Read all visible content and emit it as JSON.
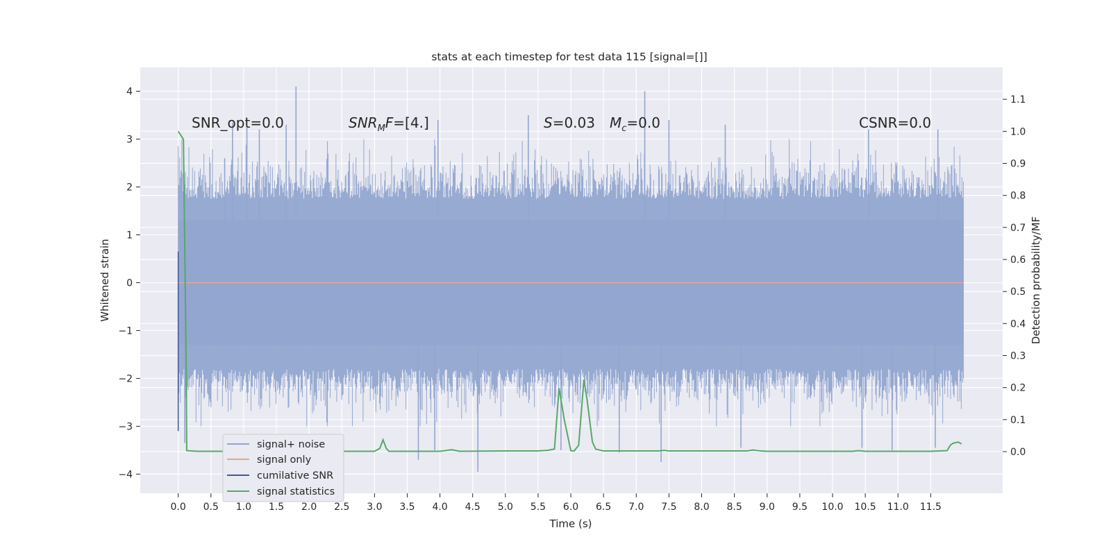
{
  "chart_data": {
    "type": "line",
    "title": "stats at each timestep for test data 115 [signal=[]]",
    "xlabel": "Time (s)",
    "ylabel_left": "Whitened strain",
    "ylabel_right": "Detection probability/MF",
    "xlim": [
      -0.58,
      12.6
    ],
    "ylim_left": [
      -4.4,
      4.5
    ],
    "ylim_right": [
      -0.13,
      1.2
    ],
    "x_ticks": [
      "0.0",
      "0.5",
      "1.0",
      "1.5",
      "2.0",
      "2.5",
      "3.0",
      "3.5",
      "4.0",
      "4.5",
      "5.0",
      "5.5",
      "6.0",
      "6.5",
      "7.0",
      "7.5",
      "8.0",
      "8.5",
      "9.0",
      "9.5",
      "10.0",
      "10.5",
      "11.0",
      "11.5"
    ],
    "y_ticks_left": [
      "−4",
      "−3",
      "−2",
      "−1",
      "0",
      "1",
      "2",
      "3",
      "4"
    ],
    "y_ticks_right": [
      "0.0",
      "0.1",
      "0.2",
      "0.3",
      "0.4",
      "0.5",
      "0.6",
      "0.7",
      "0.8",
      "0.9",
      "1.0",
      "1.1"
    ],
    "grid": true,
    "legend_position": "lower-left",
    "series": [
      {
        "name": "signal+ noise",
        "color": "#92a6cf",
        "x_range": [
          0.0,
          12.0
        ],
        "dense_band": [
          -1.3,
          1.3
        ],
        "spike_extremes": [
          {
            "x": 0.71,
            "y": 2.6
          },
          {
            "x": 0.83,
            "y": 3.35
          },
          {
            "x": 1.05,
            "y": 3.25
          },
          {
            "x": 1.24,
            "y": 3.2
          },
          {
            "x": 1.65,
            "y": 3.3
          },
          {
            "x": 1.8,
            "y": 4.1
          },
          {
            "x": 3.97,
            "y": 3.4
          },
          {
            "x": 5.35,
            "y": 3.5
          },
          {
            "x": 7.13,
            "y": 4.0
          },
          {
            "x": 7.5,
            "y": 3.4
          },
          {
            "x": 8.36,
            "y": 3.3
          },
          {
            "x": 10.55,
            "y": 3.2
          },
          {
            "x": 11.61,
            "y": 3.2
          },
          {
            "x": 0.1,
            "y": -3.35
          },
          {
            "x": 3.67,
            "y": -3.7
          },
          {
            "x": 3.92,
            "y": -3.5
          },
          {
            "x": 4.58,
            "y": -3.95
          },
          {
            "x": 5.85,
            "y": -3.5
          },
          {
            "x": 6.74,
            "y": -3.55
          },
          {
            "x": 7.38,
            "y": -3.75
          },
          {
            "x": 8.6,
            "y": -3.45
          },
          {
            "x": 10.45,
            "y": -3.45
          },
          {
            "x": 10.91,
            "y": -3.5
          },
          {
            "x": 11.57,
            "y": -3.45
          }
        ]
      },
      {
        "name": "signal only",
        "color": "#e8a48c",
        "x": [
          0.0,
          12.0
        ],
        "y": [
          0.0,
          0.0
        ]
      },
      {
        "name": "cumilative SNR",
        "color": "#3c5a9a",
        "x": [
          0.0,
          0.0
        ],
        "y": [
          -3.1,
          0.65
        ]
      },
      {
        "name": "signal statistics",
        "color": "#55a868",
        "axis": "right",
        "x": [
          0.0,
          0.08,
          0.12,
          0.13,
          0.2,
          0.3,
          1.0,
          2.0,
          3.0,
          3.08,
          3.13,
          3.18,
          3.22,
          3.5,
          4.0,
          4.18,
          4.3,
          5.0,
          5.5,
          5.65,
          5.75,
          5.82,
          5.9,
          6.0,
          6.05,
          6.12,
          6.2,
          6.25,
          6.33,
          6.38,
          6.5,
          7.0,
          7.35,
          7.42,
          7.5,
          8.0,
          8.7,
          8.78,
          8.9,
          9.0,
          10.0,
          10.3,
          10.4,
          10.5,
          11.0,
          11.5,
          11.75,
          11.8,
          11.84,
          11.92,
          11.97
        ],
        "y": [
          1.0,
          0.975,
          0.3,
          0.003,
          0.002,
          0.001,
          0.001,
          0.001,
          0.001,
          0.01,
          0.037,
          0.01,
          0.001,
          0.001,
          0.001,
          0.006,
          0.001,
          0.002,
          0.002,
          0.004,
          0.008,
          0.198,
          0.1,
          0.003,
          0.002,
          0.02,
          0.225,
          0.16,
          0.03,
          0.008,
          0.002,
          0.002,
          0.002,
          0.004,
          0.002,
          0.002,
          0.002,
          0.005,
          0.002,
          0.001,
          0.001,
          0.001,
          0.003,
          0.001,
          0.001,
          0.001,
          0.003,
          0.02,
          0.026,
          0.03,
          0.024
        ]
      }
    ],
    "annotations": [
      {
        "id": "snr-opt",
        "text": "SNR_opt=0.0"
      },
      {
        "id": "snr-mf",
        "text": "[4.]"
      },
      {
        "id": "s-val",
        "text": "=0.03"
      },
      {
        "id": "mc-val",
        "text": "=0.0"
      },
      {
        "id": "csnr",
        "text": "CSNR=0.0"
      }
    ]
  }
}
